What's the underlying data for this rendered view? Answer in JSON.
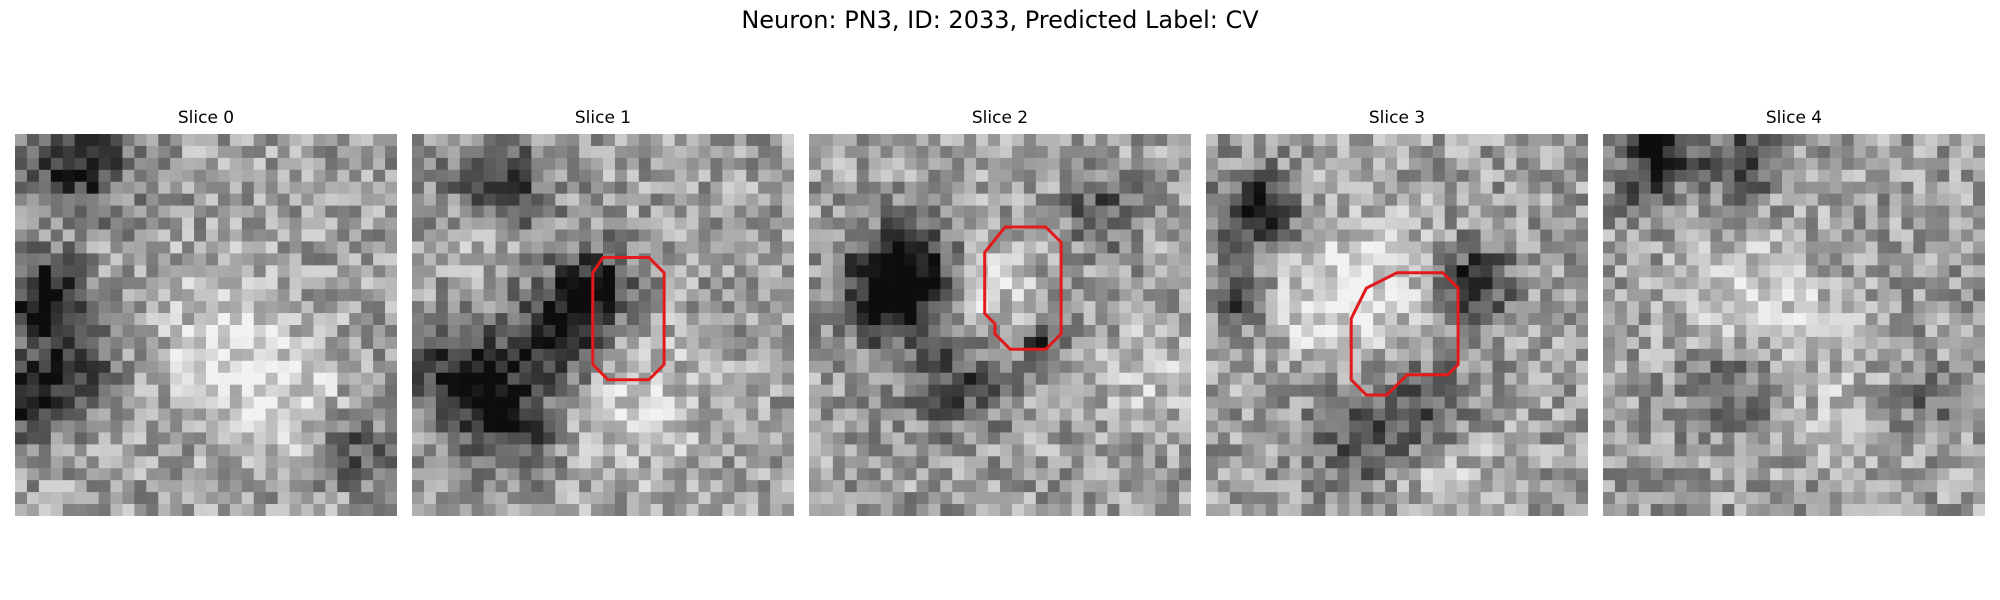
{
  "figure": {
    "title": "Neuron: PN3, ID: 2033, Predicted Label: CV",
    "grid_size": 32,
    "outline_color": "#e31a1c"
  },
  "slices": [
    {
      "label": "Slice 0",
      "has_outline": false
    },
    {
      "label": "Slice 1",
      "has_outline": true
    },
    {
      "label": "Slice 2",
      "has_outline": true
    },
    {
      "label": "Slice 3",
      "has_outline": true
    },
    {
      "label": "Slice 4",
      "has_outline": false
    }
  ]
}
